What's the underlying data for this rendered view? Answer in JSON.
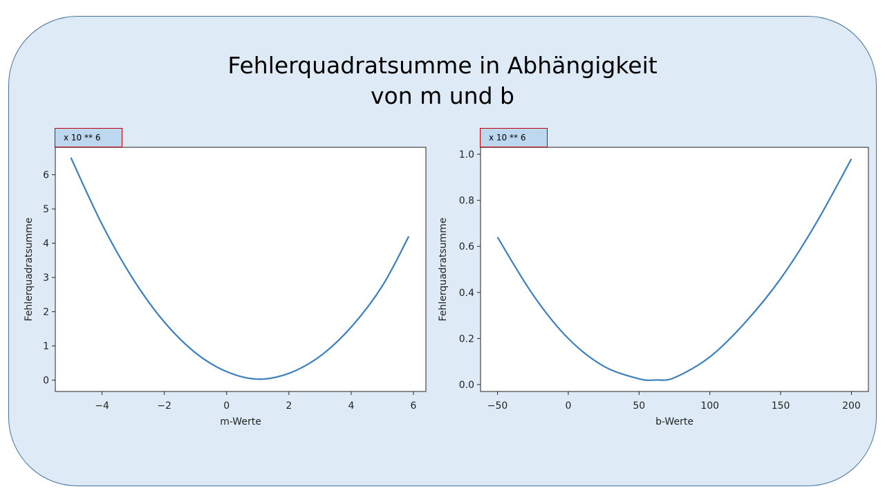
{
  "title": {
    "line1": "Fehlerquadratsumme in Abhängigkeit",
    "line2": "von m und b"
  },
  "colors": {
    "panel_fill": "#deebf7",
    "panel_border": "#41719c",
    "line": "#3a7fbf",
    "badge_fill": "#bdd7ee",
    "badge_border": "#c00000"
  },
  "chart_data": [
    {
      "type": "line",
      "xlabel": "m-Werte",
      "ylabel": "Fehlerquadratsumme",
      "scale_note": "x 10 ** 6",
      "xlim": [
        -5.5,
        6.4
      ],
      "ylim": [
        -0.33,
        6.8
      ],
      "xticks": [
        -4,
        -2,
        0,
        2,
        4,
        6
      ],
      "yticks": [
        0,
        1,
        2,
        3,
        4,
        5,
        6
      ],
      "xticklabels": [
        "−4",
        "−2",
        "0",
        "2",
        "4",
        "6"
      ],
      "yticklabels": [
        "0",
        "1",
        "2",
        "3",
        "4",
        "5",
        "6"
      ],
      "series": [
        {
          "x": [
            -5.0,
            -4.0,
            -3.0,
            -2.0,
            -1.0,
            0.0,
            1.0,
            2.0,
            3.0,
            4.0,
            5.0,
            5.85
          ],
          "y": [
            6.5,
            4.55,
            2.95,
            1.7,
            0.8,
            0.25,
            0.03,
            0.2,
            0.7,
            1.55,
            2.75,
            4.2
          ]
        }
      ]
    },
    {
      "type": "line",
      "xlabel": "b-Werte",
      "ylabel": "Fehlerquadratsumme",
      "scale_note": "x 10 ** 6",
      "xlim": [
        -62,
        212
      ],
      "ylim": [
        -0.03,
        1.03
      ],
      "xticks": [
        -50,
        0,
        50,
        100,
        150,
        200
      ],
      "yticks": [
        0.0,
        0.2,
        0.4,
        0.6,
        0.8,
        1.0
      ],
      "xticklabels": [
        "−50",
        "0",
        "50",
        "100",
        "150",
        "200"
      ],
      "yticklabels": [
        "0.0",
        "0.2",
        "0.4",
        "0.6",
        "0.8",
        "1.0"
      ],
      "series": [
        {
          "x": [
            -50,
            -25,
            0,
            25,
            50,
            62,
            75,
            100,
            125,
            150,
            175,
            200
          ],
          "y": [
            0.64,
            0.39,
            0.2,
            0.08,
            0.025,
            0.02,
            0.03,
            0.12,
            0.27,
            0.46,
            0.7,
            0.98
          ]
        }
      ]
    }
  ]
}
